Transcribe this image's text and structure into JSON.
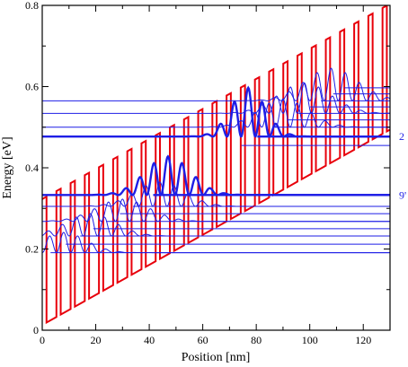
{
  "chart_data": {
    "type": "line",
    "xlabel": "Position [nm]",
    "ylabel": "Energy [eV]",
    "xlim": [
      0,
      130
    ],
    "ylim": [
      0,
      0.8
    ],
    "x_ticks": [
      0,
      20,
      40,
      60,
      80,
      100,
      120
    ],
    "y_ticks": [
      0,
      0.2,
      0.4,
      0.6,
      0.8
    ],
    "x_tick_labels": [
      "0",
      "20",
      "40",
      "60",
      "80",
      "100",
      "120"
    ],
    "y_tick_labels": [
      "0",
      "0.2",
      "0.4",
      "0.6",
      "0.8"
    ],
    "grid": false,
    "colors": {
      "band": "#e8000b",
      "states": "#1e1ee6",
      "axes": "#000000"
    },
    "conduction_band": {
      "base_start_eV": 0.013,
      "slope_eV_per_nm": 0.0037,
      "barrier_height_eV": 0.31,
      "period_nm": 5.3,
      "barrier_width_nm": 1.6,
      "x_start_nm": 0,
      "x_end_nm": 130
    },
    "energy_levels_eV": [
      0.191,
      0.212,
      0.232,
      0.25,
      0.268,
      0.287,
      0.305,
      0.333,
      0.455,
      0.477,
      0.5,
      0.518,
      0.534,
      0.55,
      0.565,
      0.582,
      0.597
    ],
    "highlighted_levels": [
      {
        "label": "2",
        "energy": 0.477
      },
      {
        "label": "9'",
        "energy": 0.333
      }
    ],
    "wavefunctions": [
      {
        "energy": 0.191,
        "center_nm": 8,
        "sigma_nm": 12,
        "amplitude": 0.05
      },
      {
        "energy": 0.232,
        "center_nm": 18,
        "sigma_nm": 13,
        "amplitude": 0.055
      },
      {
        "energy": 0.268,
        "center_nm": 30,
        "sigma_nm": 14,
        "amplitude": 0.055
      },
      {
        "energy": 0.305,
        "center_nm": 44,
        "sigma_nm": 13,
        "amplitude": 0.06
      },
      {
        "energy": 0.333,
        "center_nm": 47,
        "sigma_nm": 12,
        "amplitude": 0.095,
        "bold": true
      },
      {
        "energy": 0.477,
        "center_nm": 77,
        "sigma_nm": 9,
        "amplitude": 0.12,
        "bold": true
      },
      {
        "energy": 0.5,
        "center_nm": 90,
        "sigma_nm": 13,
        "amplitude": 0.07
      },
      {
        "energy": 0.534,
        "center_nm": 98,
        "sigma_nm": 14,
        "amplitude": 0.075
      },
      {
        "energy": 0.565,
        "center_nm": 108,
        "sigma_nm": 14,
        "amplitude": 0.08
      }
    ]
  }
}
